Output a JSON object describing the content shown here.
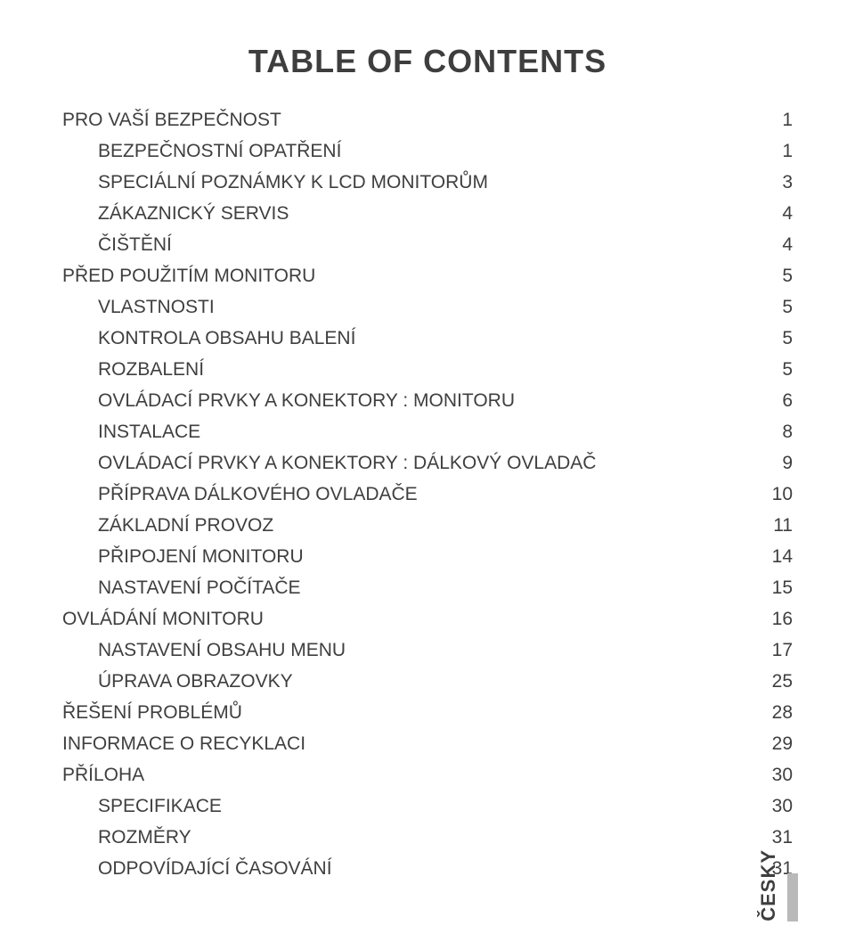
{
  "title": "TABLE OF CONTENTS",
  "side_label": "ČESKY",
  "colors": {
    "text": "#3f3f3f",
    "background": "#ffffff",
    "tab_bar": "#b9b9b9"
  },
  "typography": {
    "title_fontsize": 36,
    "body_fontsize": 21,
    "title_weight": 700
  },
  "toc": [
    {
      "label": "PRO VAŠÍ BEZPEČNOST",
      "page": "1",
      "indent": 0
    },
    {
      "label": "BEZPEČNOSTNÍ OPATŘENÍ",
      "page": "1",
      "indent": 1
    },
    {
      "label": "SPECIÁLNÍ POZNÁMKY K LCD MONITORŮM",
      "page": "3",
      "indent": 1
    },
    {
      "label": "ZÁKAZNICKÝ SERVIS",
      "page": "4",
      "indent": 1
    },
    {
      "label": "ČIŠTĚNÍ",
      "page": "4",
      "indent": 1
    },
    {
      "label": "PŘED POUŽITÍM MONITORU",
      "page": "5",
      "indent": 0
    },
    {
      "label": "VLASTNOSTI",
      "page": "5",
      "indent": 1
    },
    {
      "label": "KONTROLA OBSAHU BALENÍ",
      "page": "5",
      "indent": 1
    },
    {
      "label": "ROZBALENÍ",
      "page": "5",
      "indent": 1
    },
    {
      "label": "OVLÁDACÍ PRVKY A KONEKTORY : MONITORU",
      "page": "6",
      "indent": 1
    },
    {
      "label": "INSTALACE",
      "page": "8",
      "indent": 1
    },
    {
      "label": "OVLÁDACÍ PRVKY A KONEKTORY : DÁLKOVÝ OVLADAČ",
      "page": "9",
      "indent": 1
    },
    {
      "label": "PŘÍPRAVA DÁLKOVÉHO OVLADAČE",
      "page": "10",
      "indent": 1
    },
    {
      "label": "ZÁKLADNÍ PROVOZ",
      "page": "11",
      "indent": 1
    },
    {
      "label": "PŘIPOJENÍ MONITORU",
      "page": "14",
      "indent": 1
    },
    {
      "label": "NASTAVENÍ POČÍTAČE",
      "page": "15",
      "indent": 1
    },
    {
      "label": "OVLÁDÁNÍ MONITORU",
      "page": "16",
      "indent": 0
    },
    {
      "label": "NASTAVENÍ OBSAHU MENU",
      "page": "17",
      "indent": 1
    },
    {
      "label": "ÚPRAVA OBRAZOVKY",
      "page": "25",
      "indent": 1
    },
    {
      "label": "ŘEŠENÍ PROBLÉMŮ",
      "page": "28",
      "indent": 0
    },
    {
      "label": "INFORMACE O RECYKLACI",
      "page": "29",
      "indent": 0
    },
    {
      "label": "PŘÍLOHA",
      "page": "30",
      "indent": 0
    },
    {
      "label": "SPECIFIKACE",
      "page": "30",
      "indent": 1
    },
    {
      "label": "ROZMĚRY",
      "page": "31",
      "indent": 1
    },
    {
      "label": "ODPOVÍDAJÍCÍ ČASOVÁNÍ",
      "page": "31",
      "indent": 1
    }
  ]
}
